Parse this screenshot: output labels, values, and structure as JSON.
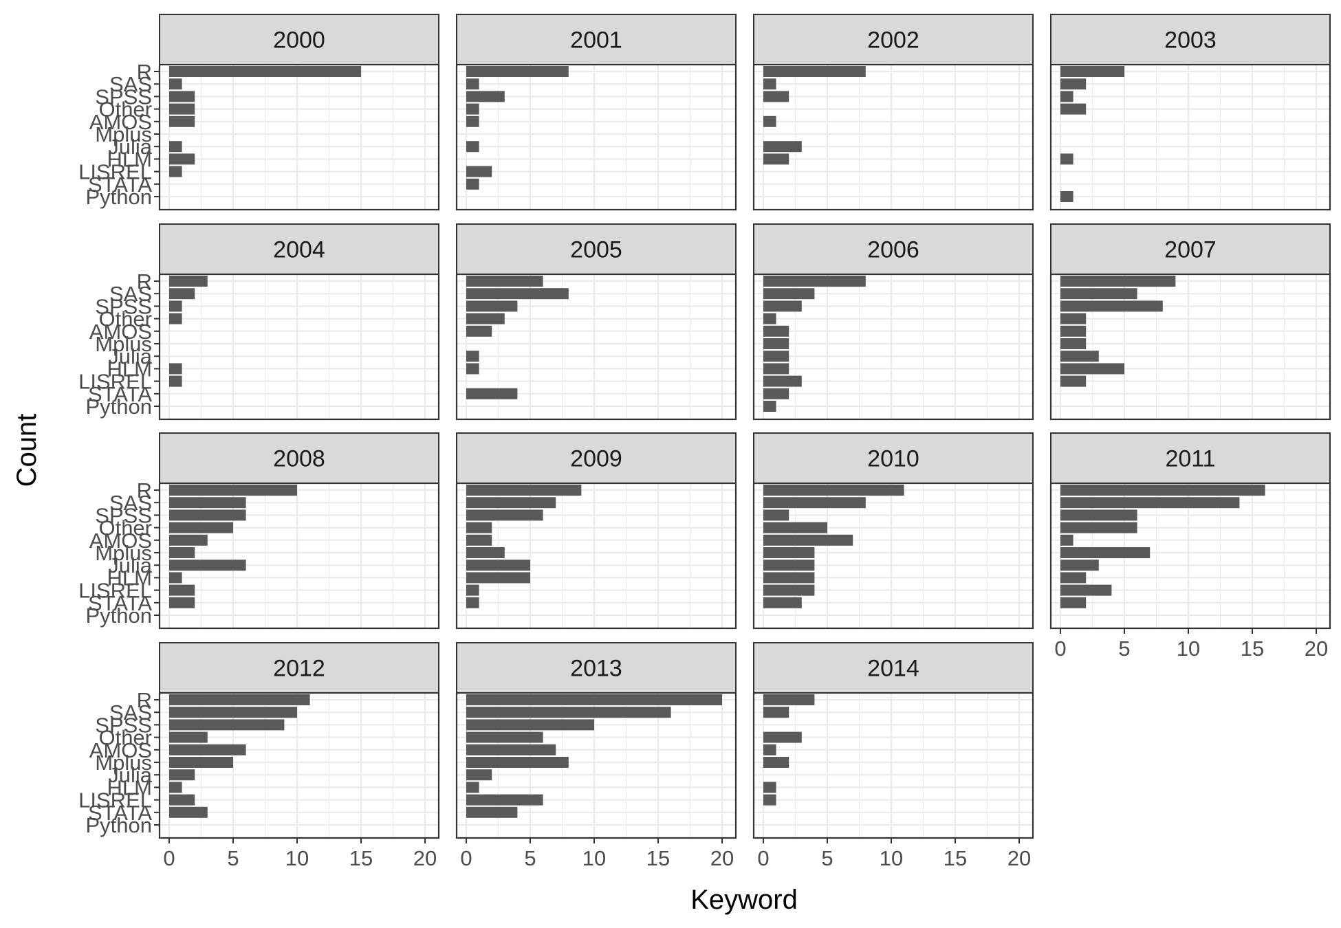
{
  "chart_data": {
    "type": "bar",
    "orientation": "horizontal",
    "facet_by": "year",
    "xlabel": "Keyword",
    "ylabel": "Count",
    "xlim": [
      0,
      20
    ],
    "x_ticks": [
      0,
      5,
      10,
      15,
      20
    ],
    "categories": [
      "R",
      "SAS",
      "SPSS",
      "Other",
      "AMOS",
      "Mplus",
      "Julia",
      "HLM",
      "LISREL",
      "STATA",
      "Python"
    ],
    "grid": true,
    "legend": "none",
    "colors": {
      "bar": "#595959",
      "strip_background": "#d9d9d9",
      "panel_border": "#333333",
      "grid": "#ebebeb"
    },
    "panels": [
      {
        "label": "2000",
        "values": [
          15,
          1,
          2,
          2,
          2,
          0,
          1,
          2,
          1,
          0,
          0
        ]
      },
      {
        "label": "2001",
        "values": [
          8,
          1,
          3,
          1,
          1,
          0,
          1,
          0,
          2,
          1,
          0
        ]
      },
      {
        "label": "2002",
        "values": [
          8,
          1,
          2,
          0,
          1,
          0,
          3,
          2,
          0,
          0,
          0
        ]
      },
      {
        "label": "2003",
        "values": [
          5,
          2,
          1,
          2,
          0,
          0,
          0,
          1,
          0,
          0,
          1
        ]
      },
      {
        "label": "2004",
        "values": [
          3,
          2,
          1,
          1,
          0,
          0,
          0,
          1,
          1,
          0,
          0
        ]
      },
      {
        "label": "2005",
        "values": [
          6,
          8,
          4,
          3,
          2,
          0,
          1,
          1,
          0,
          4,
          0
        ]
      },
      {
        "label": "2006",
        "values": [
          8,
          4,
          3,
          1,
          2,
          2,
          2,
          2,
          3,
          2,
          1
        ]
      },
      {
        "label": "2007",
        "values": [
          9,
          6,
          8,
          2,
          2,
          2,
          3,
          5,
          2,
          0,
          0
        ]
      },
      {
        "label": "2008",
        "values": [
          10,
          6,
          6,
          5,
          3,
          2,
          6,
          1,
          2,
          2,
          0
        ]
      },
      {
        "label": "2009",
        "values": [
          9,
          7,
          6,
          2,
          2,
          3,
          5,
          5,
          1,
          1,
          0
        ]
      },
      {
        "label": "2010",
        "values": [
          11,
          8,
          2,
          5,
          7,
          4,
          4,
          4,
          4,
          3,
          0
        ]
      },
      {
        "label": "2011",
        "values": [
          16,
          14,
          6,
          6,
          1,
          7,
          3,
          2,
          4,
          2,
          0
        ]
      },
      {
        "label": "2012",
        "values": [
          11,
          10,
          9,
          3,
          6,
          5,
          2,
          1,
          2,
          3,
          0
        ]
      },
      {
        "label": "2013",
        "values": [
          20,
          16,
          10,
          6,
          7,
          8,
          2,
          1,
          6,
          4,
          0
        ]
      },
      {
        "label": "2014",
        "values": [
          4,
          2,
          0,
          3,
          1,
          2,
          0,
          1,
          1,
          0,
          0
        ]
      }
    ]
  }
}
